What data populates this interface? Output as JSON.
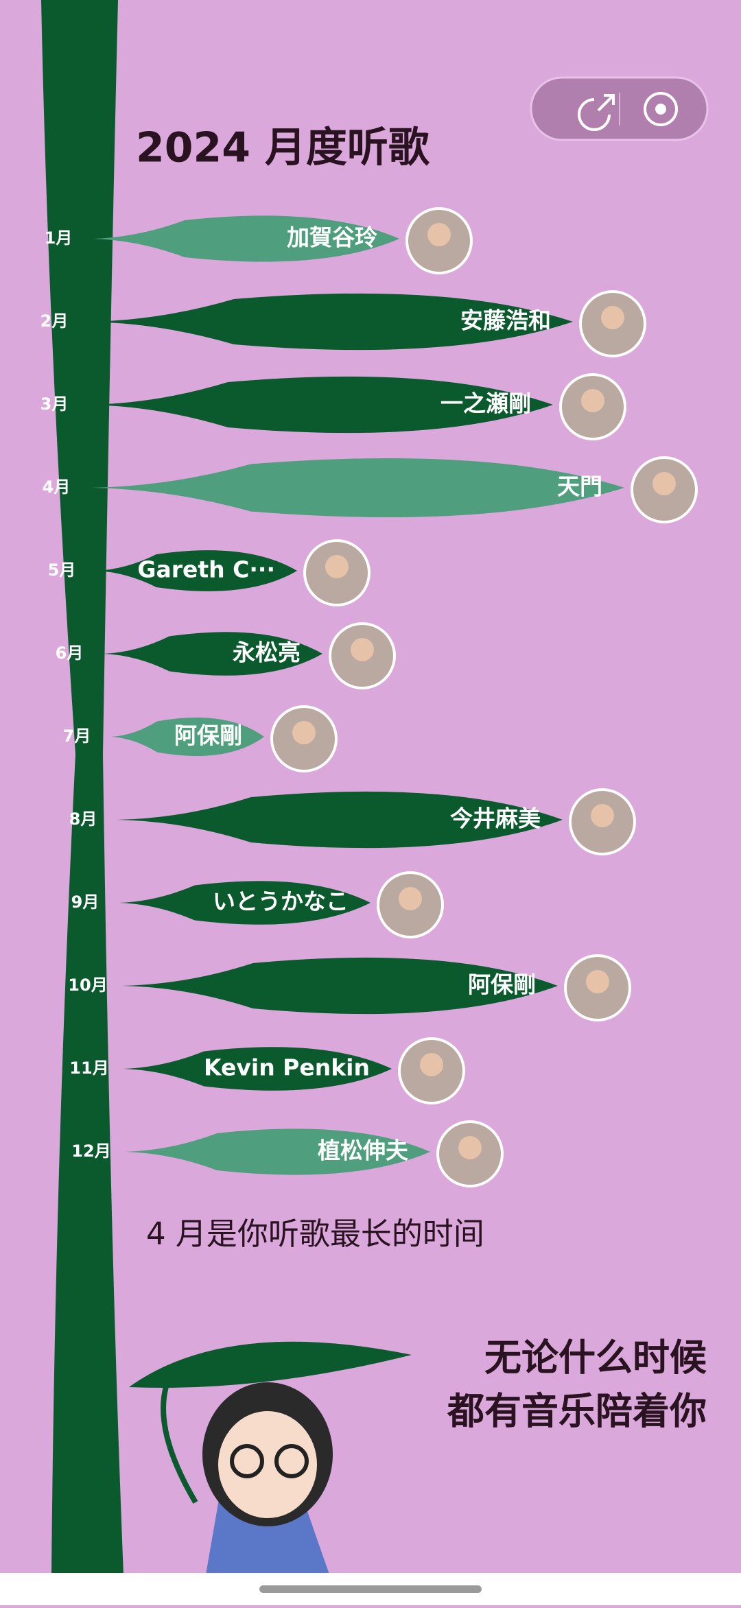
{
  "header": {
    "title": "2024 月度听歌"
  },
  "months": [
    {
      "month": "1月",
      "artist": "加賀谷玲",
      "color": "#4f9e7d"
    },
    {
      "month": "2月",
      "artist": "安藤浩和",
      "color": "#0b5a2e"
    },
    {
      "month": "3月",
      "artist": "一之瀬剛",
      "color": "#0b5a2e"
    },
    {
      "month": "4月",
      "artist": "天門",
      "color": "#4f9e7d"
    },
    {
      "month": "5月",
      "artist": "Gareth C···",
      "color": "#0b5a2e"
    },
    {
      "month": "6月",
      "artist": "永松亮",
      "color": "#0b5a2e"
    },
    {
      "month": "7月",
      "artist": "阿保剛",
      "color": "#4f9e7d"
    },
    {
      "month": "8月",
      "artist": "今井麻美",
      "color": "#0b5a2e"
    },
    {
      "month": "9月",
      "artist": "いとうかなこ",
      "color": "#0b5a2e"
    },
    {
      "month": "10月",
      "artist": "阿保剛",
      "color": "#0b5a2e"
    },
    {
      "month": "11月",
      "artist": "Kevin Penkin",
      "color": "#0b5a2e"
    },
    {
      "month": "12月",
      "artist": "植松伸夫",
      "color": "#4f9e7d"
    }
  ],
  "summary": "4 月是你听歌最长的时间",
  "footer": {
    "line1": "无论什么时候",
    "line2": "都有音乐陪着你"
  }
}
